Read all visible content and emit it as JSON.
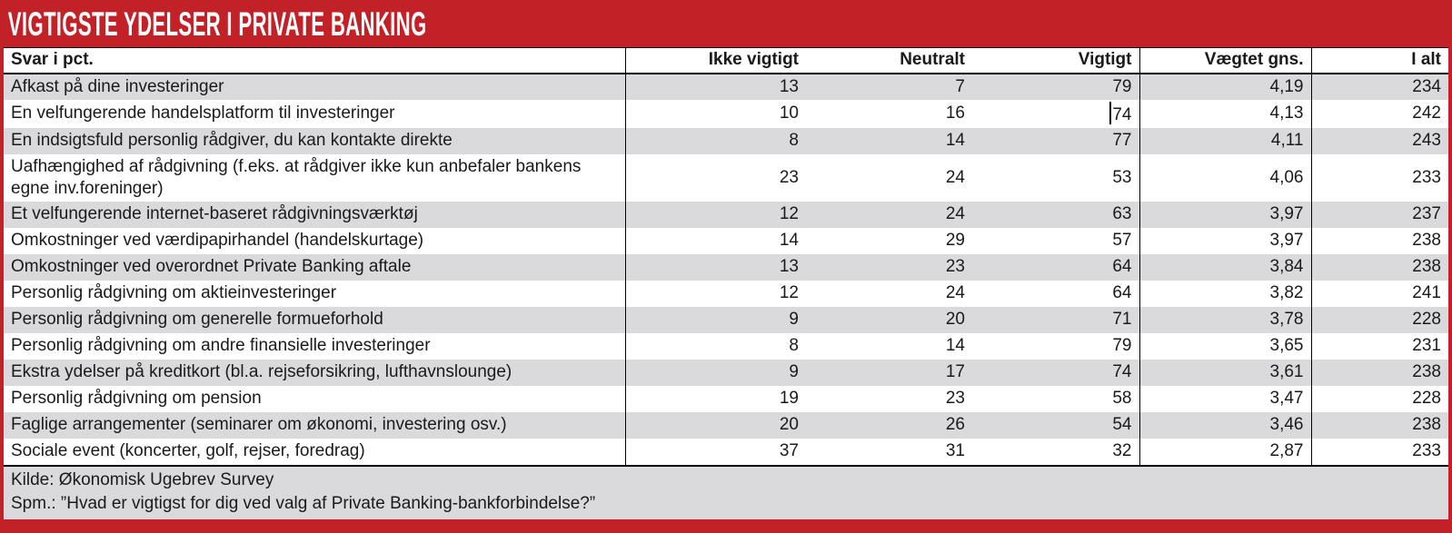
{
  "title": "VIGTIGSTE YDELSER I PRIVATE BANKING",
  "colors": {
    "accent_red": "#C22127",
    "row_gray": "#DADADD",
    "text": "#1A1A1A",
    "title_text": "#FFFFFF"
  },
  "chart_data": {
    "type": "table",
    "title": "VIGTIGSTE YDELSER I PRIVATE BANKING",
    "columns": [
      "Svar i pct.",
      "Ikke vigtigt",
      "Neutralt",
      "Vigtigt",
      "Vægtet gns.",
      "I alt"
    ],
    "rows": [
      {
        "label": "Afkast på dine investeringer",
        "values": [
          "13",
          "7",
          "79",
          "4,19",
          "234"
        ]
      },
      {
        "label": "En velfungerende handelsplatform til investeringer",
        "values": [
          "10",
          "16",
          "74",
          "4,13",
          "242"
        ]
      },
      {
        "label": "En indsigtsfuld personlig rådgiver, du kan kontakte direkte",
        "values": [
          "8",
          "14",
          "77",
          "4,11",
          "243"
        ]
      },
      {
        "label": "Uafhængighed af rådgivning (f.eks. at rådgiver ikke kun anbefaler bankens egne inv.foreninger)",
        "values": [
          "23",
          "24",
          "53",
          "4,06",
          "233"
        ]
      },
      {
        "label": "Et velfungerende internet-baseret rådgivningsværktøj",
        "values": [
          "12",
          "24",
          "63",
          "3,97",
          "237"
        ]
      },
      {
        "label": "Omkostninger ved værdipapirhandel (handelskurtage)",
        "values": [
          "14",
          "29",
          "57",
          "3,97",
          "238"
        ]
      },
      {
        "label": "Omkostninger ved overordnet Private Banking aftale",
        "values": [
          "13",
          "23",
          "64",
          "3,84",
          "238"
        ]
      },
      {
        "label": "Personlig rådgivning om aktieinvesteringer",
        "values": [
          "12",
          "24",
          "64",
          "3,82",
          "241"
        ]
      },
      {
        "label": "Personlig rådgivning om generelle formueforhold",
        "values": [
          "9",
          "20",
          "71",
          "3,78",
          "228"
        ]
      },
      {
        "label": "Personlig rådgivning om andre finansielle investeringer",
        "values": [
          "8",
          "14",
          "79",
          "3,65",
          "231"
        ]
      },
      {
        "label": "Ekstra ydelser på kreditkort (bl.a. rejseforsikring, lufthavnslounge)",
        "values": [
          "9",
          "17",
          "74",
          "3,61",
          "238"
        ]
      },
      {
        "label": "Personlig rådgivning om pension",
        "values": [
          "19",
          "23",
          "58",
          "3,47",
          "228"
        ]
      },
      {
        "label": "Faglige arrangementer (seminarer om økonomi, investering osv.)",
        "values": [
          "20",
          "26",
          "54",
          "3,46",
          "238"
        ]
      },
      {
        "label": "Sociale event (koncerter, golf, rejser, foredrag)",
        "values": [
          "37",
          "31",
          "32",
          "2,87",
          "233"
        ]
      }
    ],
    "source": "Kilde: Økonomisk Ugebrev Survey",
    "question": "Spm.: ”Hvad er vigtigst for dig ved valg af Private Banking-bankforbindelse?”"
  },
  "footer": {
    "source_line": "Kilde: Økonomisk Ugebrev Survey",
    "question_line": "Spm.: ”Hvad er vigtigst for dig ved valg af Private Banking-bankforbindelse?”"
  },
  "artifacts": {
    "text_cursor": {
      "row_index": 1,
      "value_index": 2
    }
  }
}
